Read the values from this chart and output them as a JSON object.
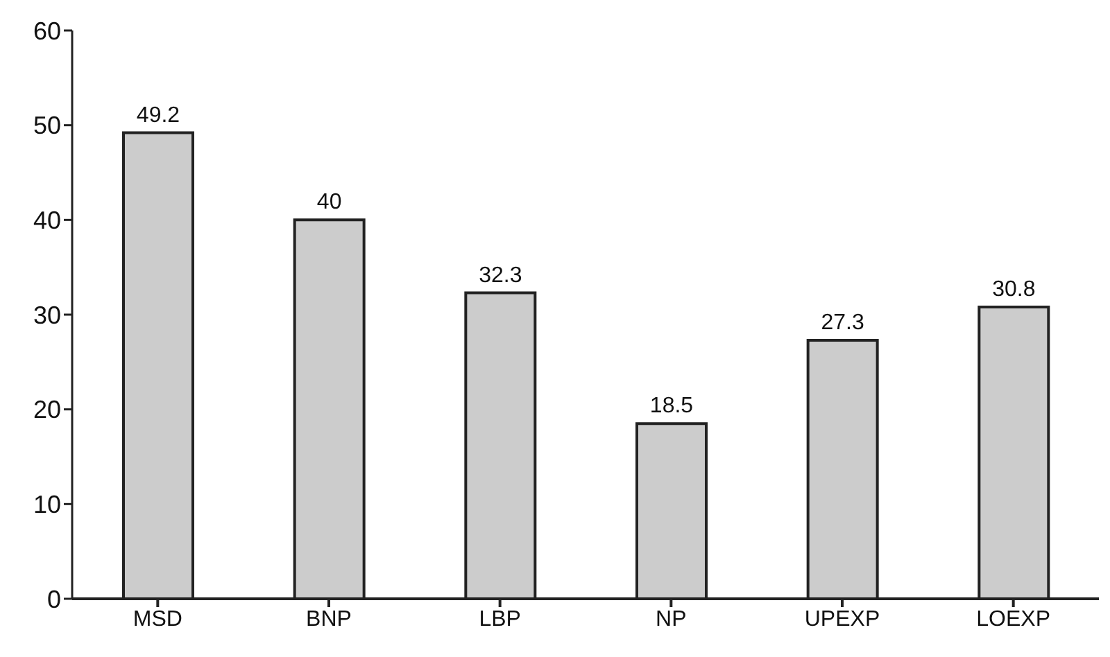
{
  "chart_data": {
    "type": "bar",
    "categories": [
      "MSD",
      "BNP",
      "LBP",
      "NP",
      "UPEXP",
      "LOEXP"
    ],
    "values": [
      49.2,
      40,
      32.3,
      18.5,
      27.3,
      30.8
    ],
    "color": "#cccccc",
    "ylim": [
      0,
      60
    ],
    "yticks": [
      0,
      10,
      20,
      30,
      40,
      50,
      60
    ],
    "grid": false,
    "data_labels": true
  }
}
